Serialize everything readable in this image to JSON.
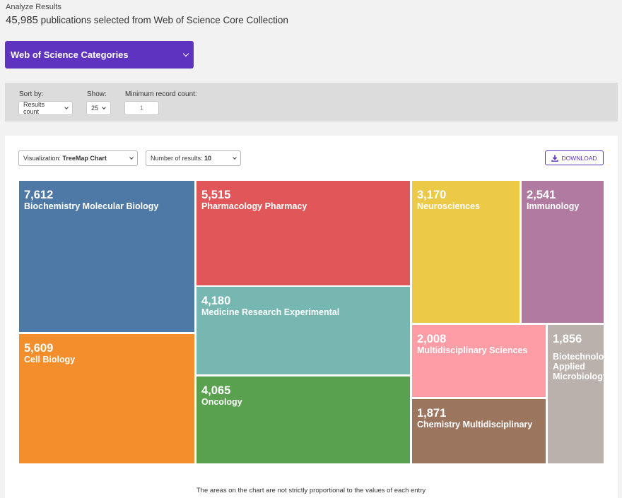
{
  "header": {
    "breadcrumb": "Analyze Results",
    "count": "45,985",
    "subtitle": "publications selected from Web of Science Core Collection"
  },
  "field_select": {
    "label": "Web of Science Categories"
  },
  "filters": {
    "sort_label": "Sort by:",
    "sort_value": "Results count",
    "show_label": "Show:",
    "show_value": "25",
    "min_label": "Minimum record count:",
    "min_value": "1"
  },
  "visualization": {
    "viz_label": "Visualization:",
    "viz_value": "TreeMap Chart",
    "num_label": "Number of results:",
    "num_value": "10",
    "download_label": "DOWNLOAD"
  },
  "chart_data": {
    "type": "treemap",
    "note": "The areas on the chart are not strictly proportional to the values of each entry",
    "items": [
      {
        "id": "biochem",
        "value": "7,612",
        "label": "Biochemistry Molecular Biology",
        "color": "#4e79a7"
      },
      {
        "id": "cellbio",
        "value": "5,609",
        "label": "Cell Biology",
        "color": "#f28e2b"
      },
      {
        "id": "pharma",
        "value": "5,515",
        "label": "Pharmacology Pharmacy",
        "color": "#e15759"
      },
      {
        "id": "medres",
        "value": "4,180",
        "label": "Medicine Research Experimental",
        "color": "#76b7b2"
      },
      {
        "id": "oncology",
        "value": "4,065",
        "label": "Oncology",
        "color": "#59a14f"
      },
      {
        "id": "neuro",
        "value": "3,170",
        "label": "Neurosciences",
        "color": "#edc948"
      },
      {
        "id": "immuno",
        "value": "2,541",
        "label": "Immunology",
        "color": "#b07aa1"
      },
      {
        "id": "multidisc",
        "value": "2,008",
        "label": "Multidisciplinary Sciences",
        "color": "#ff9da7"
      },
      {
        "id": "biotech",
        "value": "1,856",
        "label": "Biotechnology Applied Microbiology",
        "color": "#bab0ac"
      },
      {
        "id": "chem",
        "value": "1,871",
        "label": "Chemistry Multidisciplinary",
        "color": "#9c755f"
      }
    ]
  }
}
